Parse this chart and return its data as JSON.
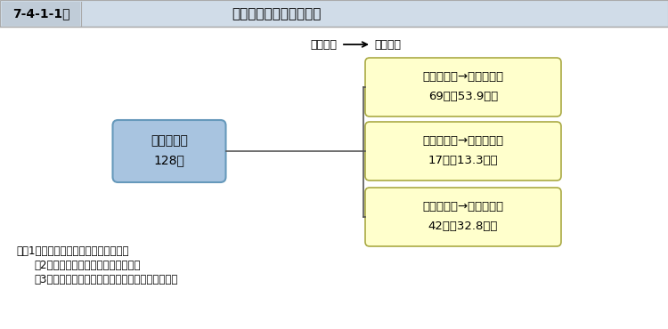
{
  "title_num": "7-4-1-1図",
  "title_text2": "殺人再犯者の事犯別人員",
  "legend_initial": "（初度）",
  "legend_repeat": "（再度）",
  "left_box_line1": "殺人再犯者",
  "left_box_line2": "128人",
  "left_box_fill": "#a8c4e0",
  "left_box_edge": "#6699bb",
  "right_box_fill": "#ffffcc",
  "right_box_edge": "#aaaa44",
  "right_boxes": [
    {
      "line1": "既遂事犯　→　既遂事犯",
      "line2": "69人（53.9％）"
    },
    {
      "line1": "既遂事犯　→　未遂事犯",
      "line2": "17人（13.3％）"
    },
    {
      "line1": "未遂事犯　→　既遂事犯",
      "line2": "42人（32.8％）"
    }
  ],
  "notes": [
    "注　1　法務総合研究所の調査による。",
    "　2　「殺人」は，強盗殺人を含む。",
    "　3　殺人再犯者は，男子のみを対象としている。"
  ],
  "bg_color": "#ffffff",
  "header_bg": "#d0dce8",
  "header_border": "#aaaaaa",
  "connector_color": "#555555",
  "text_color": "#000000",
  "title_num_bg": "#c0ccd8"
}
